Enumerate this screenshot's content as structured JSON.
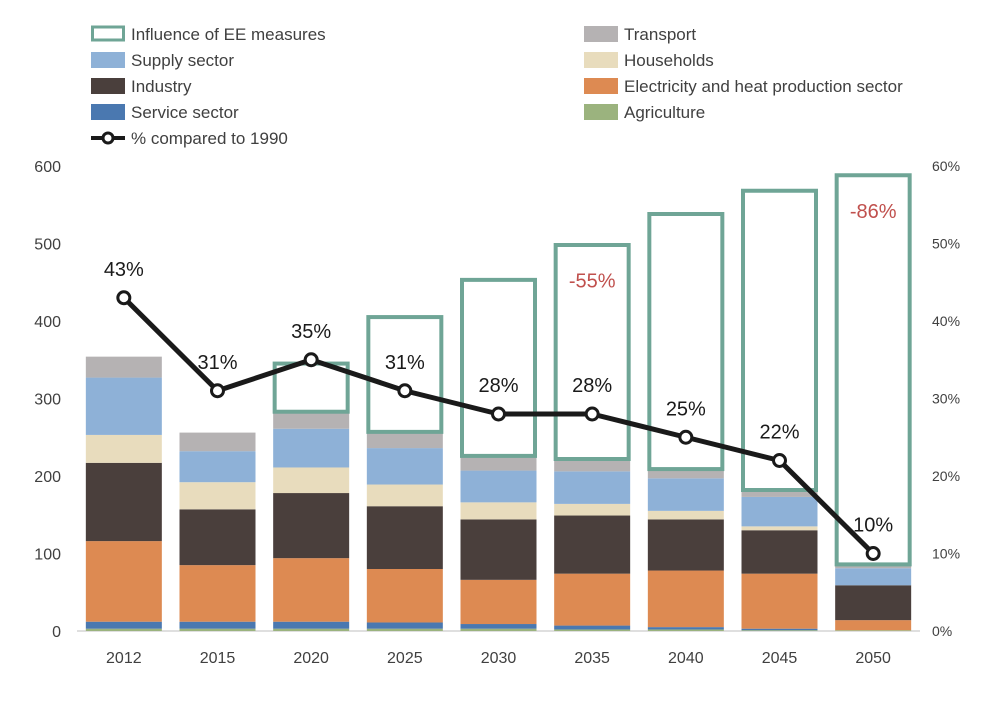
{
  "chart_data": {
    "type": "bar",
    "stacked": true,
    "categories": [
      "2012",
      "2015",
      "2020",
      "2025",
      "2030",
      "2035",
      "2040",
      "2045",
      "2050"
    ],
    "ylim": [
      0,
      600
    ],
    "yticks": [
      0,
      100,
      200,
      300,
      400,
      500,
      600
    ],
    "y2lim": [
      0,
      60
    ],
    "y2ticks": [
      "0%",
      "10%",
      "20%",
      "30%",
      "40%",
      "50%",
      "60%"
    ],
    "grid": false,
    "legend_position": "top",
    "series": [
      {
        "name": "Agriculture",
        "color": "#9bb37e",
        "values": [
          3,
          3,
          3,
          3,
          3,
          2,
          2,
          1,
          1
        ]
      },
      {
        "name": "Service sector",
        "color": "#4a78b0",
        "values": [
          9,
          9,
          9,
          8,
          6,
          5,
          3,
          2,
          0
        ]
      },
      {
        "name": "Electricity and heat production sector",
        "color": "#dd8a52",
        "values": [
          104,
          73,
          82,
          69,
          57,
          67,
          73,
          71,
          13
        ]
      },
      {
        "name": "Industry",
        "color": "#4a3f3c",
        "values": [
          101,
          72,
          84,
          81,
          78,
          75,
          66,
          56,
          45
        ]
      },
      {
        "name": "Households",
        "color": "#e8dcbd",
        "values": [
          36,
          35,
          33,
          28,
          22,
          15,
          11,
          5,
          0
        ]
      },
      {
        "name": "Supply sector",
        "color": "#8eb1d7",
        "values": [
          74,
          40,
          50,
          47,
          41,
          42,
          42,
          38,
          22
        ]
      },
      {
        "name": "Transport",
        "color": "#b5b2b3",
        "values": [
          27,
          24,
          20,
          19,
          17,
          14,
          10,
          7,
          3
        ]
      }
    ],
    "ee_measures": {
      "name": "Influence of EE measures",
      "color": "#6fa596",
      "top_values": [
        null,
        null,
        347,
        407,
        455,
        500,
        540,
        570,
        590
      ]
    },
    "line": {
      "name": "% compared to 1990",
      "values": [
        43,
        31,
        35,
        31,
        28,
        28,
        25,
        22,
        10
      ],
      "labels": [
        "43%",
        "31%",
        "35%",
        "31%",
        "28%",
        "28%",
        "25%",
        "22%",
        "10%"
      ]
    },
    "annotations": [
      {
        "category": "2035",
        "text": "-55%",
        "color": "#c0504d"
      },
      {
        "category": "2050",
        "text": "-86%",
        "color": "#c0504d"
      }
    ],
    "legend": [
      {
        "label": "Influence of EE measures",
        "kind": "outline",
        "color": "#6fa596"
      },
      {
        "label": "Transport",
        "kind": "box",
        "color": "#b5b2b3"
      },
      {
        "label": "Supply sector",
        "kind": "box",
        "color": "#8eb1d7"
      },
      {
        "label": "Households",
        "kind": "box",
        "color": "#e8dcbd"
      },
      {
        "label": "Industry",
        "kind": "box",
        "color": "#4a3f3c"
      },
      {
        "label": "Electricity and heat production sector",
        "kind": "box",
        "color": "#dd8a52"
      },
      {
        "label": "Service sector",
        "kind": "box",
        "color": "#4a78b0"
      },
      {
        "label": "Agriculture",
        "kind": "box",
        "color": "#9bb37e"
      },
      {
        "label": "% compared to 1990",
        "kind": "line",
        "color": "#1a1a1a"
      }
    ]
  }
}
